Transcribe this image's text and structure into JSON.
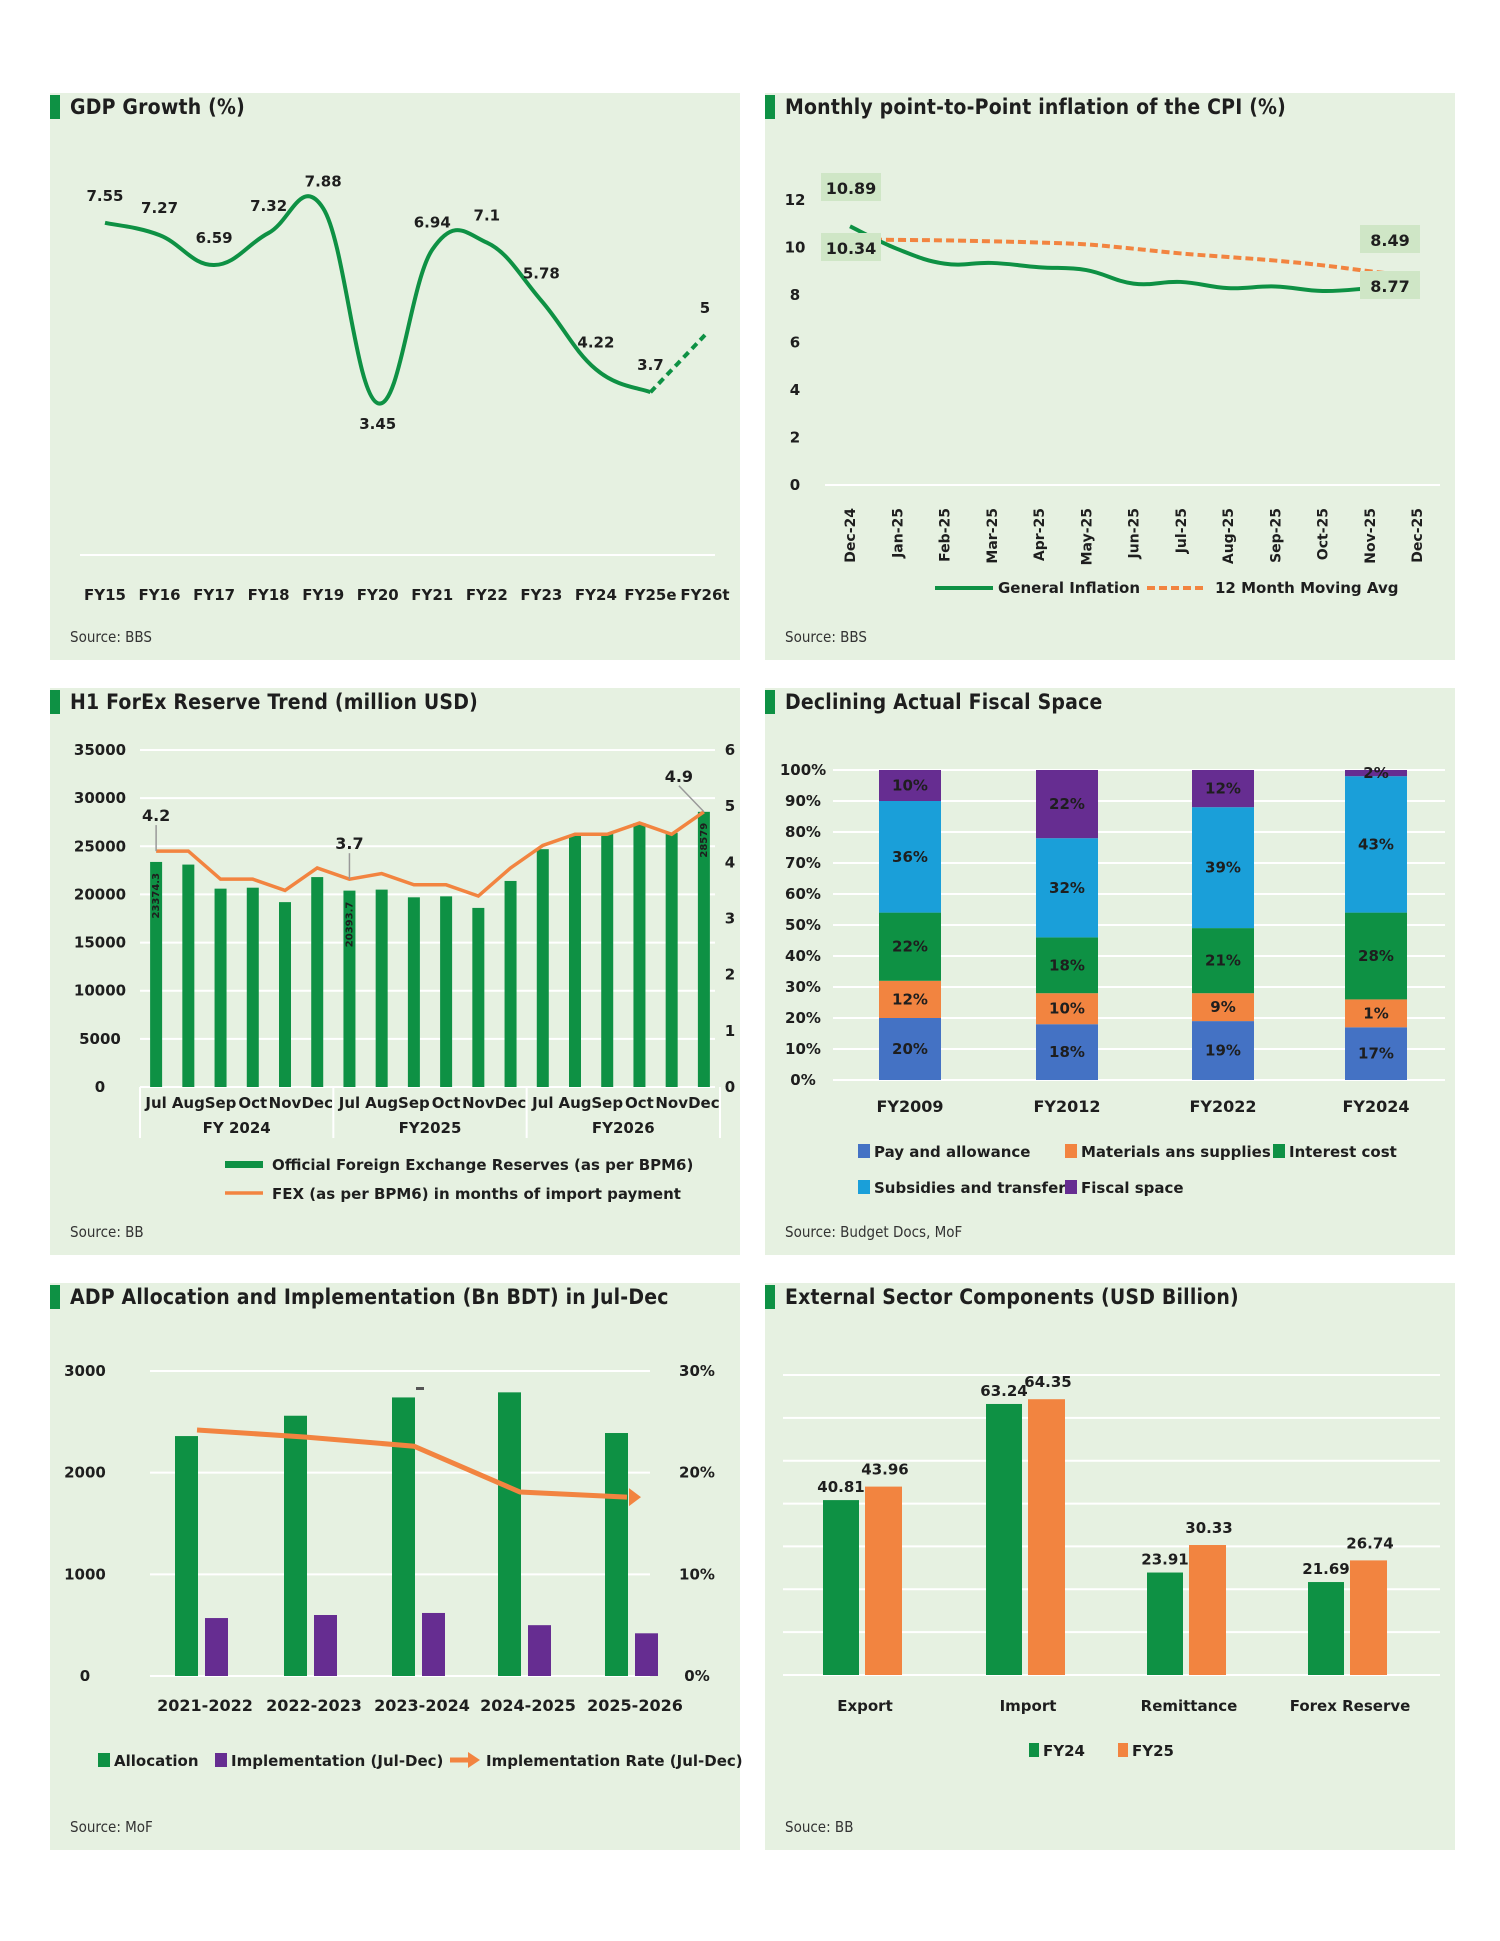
{
  "colors": {
    "panel_bg": "#e6f1e1",
    "green": "#0e9144",
    "orange": "#f28440",
    "purple": "#662d91",
    "blue": "#4472c4",
    "cyan": "#1a9fd9",
    "grid": "#ffffff"
  },
  "panels": [
    {
      "title": "GDP Growth (%)",
      "source": "Source: BBS"
    },
    {
      "title": "Monthly point-to-Point inflation of the CPI (%)",
      "source": "Source: BBS"
    },
    {
      "title": "H1 ForEx Reserve Trend (million USD)",
      "source": "Source: BB"
    },
    {
      "title": "Declining Actual Fiscal Space",
      "source": "Source: Budget Docs, MoF"
    },
    {
      "title": "ADP Allocation and Implementation (Bn BDT) in Jul-Dec",
      "source": "Source: MoF"
    },
    {
      "title": "External Sector Components (USD Billion)",
      "source": "Souce: BB"
    }
  ],
  "chart_data": [
    {
      "type": "line",
      "title": "GDP Growth (%)",
      "categories": [
        "FY15",
        "FY16",
        "FY17",
        "FY18",
        "FY19",
        "FY20",
        "FY21",
        "FY22",
        "FY23",
        "FY24",
        "FY25e",
        "FY26t"
      ],
      "values": [
        7.55,
        7.27,
        6.59,
        7.32,
        7.88,
        3.45,
        6.94,
        7.1,
        5.78,
        4.22,
        3.7,
        5
      ],
      "labels": [
        "7.55",
        "7.27",
        "6.59",
        "7.32",
        "7.88",
        "3.45",
        "6.94",
        "7.1",
        "5.78",
        "4.22",
        "3.7",
        "5"
      ],
      "projected_from_index": 10,
      "ylim": [
        0,
        9
      ],
      "grid": false
    },
    {
      "type": "line",
      "title": "Monthly point-to-Point inflation of the CPI (%)",
      "categories": [
        "Dec-24",
        "Jan-25",
        "Feb-25",
        "Mar-25",
        "Apr-25",
        "May-25",
        "Jun-25",
        "Jul-25",
        "Aug-25",
        "Sep-25",
        "Oct-25",
        "Nov-25",
        "Dec-25"
      ],
      "yticks": [
        "0",
        "2",
        "4",
        "6",
        "8",
        "10",
        "12"
      ],
      "ylim": [
        0,
        12
      ],
      "series": [
        {
          "name": "General Inflation",
          "values": [
            10.89,
            9.94,
            9.32,
            9.35,
            9.17,
            9.05,
            8.48,
            8.55,
            8.29,
            8.36,
            8.17,
            8.29,
            8.49
          ]
        },
        {
          "name": "12 Month Moving Avg",
          "values": [
            10.34,
            10.32,
            10.3,
            10.26,
            10.21,
            10.13,
            9.95,
            9.75,
            9.6,
            9.45,
            9.25,
            9.0,
            8.77
          ]
        }
      ],
      "annotations": [
        {
          "text": "10.89",
          "series": 0,
          "index": 0
        },
        {
          "text": "10.34",
          "series": 1,
          "index": 0
        },
        {
          "text": "8.49",
          "series": 0,
          "index": 12
        },
        {
          "text": "8.77",
          "series": 1,
          "index": 12
        }
      ],
      "legend": [
        "General Inflation",
        "12 Month Moving Avg"
      ],
      "legend_position": "bottom"
    },
    {
      "type": "bar",
      "title": "H1 ForEx Reserve Trend (million USD)",
      "categories": [
        "Jul",
        "Aug",
        "Sep",
        "Oct",
        "Nov",
        "Dec",
        "Jul",
        "Aug",
        "Sep",
        "Oct",
        "Nov",
        "Dec",
        "Jul",
        "Aug",
        "Sep",
        "Oct",
        "Nov",
        "Dec"
      ],
      "groups": [
        {
          "label": "FY 2024",
          "count": 6
        },
        {
          "label": "FY2025",
          "count": 6
        },
        {
          "label": "FY2026",
          "count": 6
        }
      ],
      "yticks_left": [
        "0",
        "5000",
        "10000",
        "15000",
        "20000",
        "25000",
        "30000",
        "35000"
      ],
      "yticks_right": [
        "0",
        "1",
        "2",
        "3",
        "4",
        "5",
        "6"
      ],
      "ylim_left": [
        0,
        35000
      ],
      "ylim_right": [
        0,
        6
      ],
      "series": [
        {
          "name": "Official Foreign Exchange Reserves (as per BPM6)",
          "axis": "left",
          "type": "bar",
          "values": [
            23374.3,
            23100,
            20600,
            20700,
            19200,
            21800,
            20393.7,
            20500,
            19700,
            19800,
            18600,
            21400,
            24700,
            26100,
            26300,
            27400,
            26400,
            28579
          ]
        },
        {
          "name": "FEX (as per BPM6) in months of import payment",
          "axis": "right",
          "type": "line",
          "values": [
            4.2,
            4.2,
            3.7,
            3.7,
            3.5,
            3.9,
            3.7,
            3.8,
            3.6,
            3.6,
            3.4,
            3.9,
            4.3,
            4.5,
            4.5,
            4.7,
            4.5,
            4.9
          ]
        }
      ],
      "bar_labels": [
        {
          "index": 0,
          "text": "23374.3"
        },
        {
          "index": 6,
          "text": "20393.7"
        },
        {
          "index": 17,
          "text": "28579"
        }
      ],
      "line_labels": [
        {
          "index": 0,
          "text": "4.2"
        },
        {
          "index": 6,
          "text": "3.7"
        },
        {
          "index": 17,
          "text": "4.9"
        }
      ],
      "legend_position": "bottom"
    },
    {
      "type": "bar",
      "stacked": true,
      "title": "Declining Actual Fiscal Space",
      "categories": [
        "FY2009",
        "FY2012",
        "FY2022",
        "FY2024"
      ],
      "yticks": [
        "0%",
        "10%",
        "20%",
        "30%",
        "40%",
        "50%",
        "60%",
        "70%",
        "80%",
        "90%",
        "100%"
      ],
      "ylim": [
        0,
        100
      ],
      "series": [
        {
          "name": "Pay and allowance",
          "color": "#4472c4",
          "values": [
            20,
            18,
            19,
            17
          ]
        },
        {
          "name": "Materials ans supplies",
          "color": "#f28440",
          "values": [
            12,
            10,
            9,
            1
          ]
        },
        {
          "name": "Interest cost",
          "color": "#0e9144",
          "values": [
            22,
            18,
            21,
            28
          ]
        },
        {
          "name": "Subsidies and transfers",
          "color": "#1a9fd9",
          "values": [
            36,
            32,
            39,
            43
          ]
        },
        {
          "name": "Fiscal space",
          "color": "#662d91",
          "values": [
            10,
            22,
            12,
            2
          ]
        }
      ],
      "note": "FY2024 Materials segment is drawn ~9% tall but labelled 1%",
      "legend_position": "bottom"
    },
    {
      "type": "bar",
      "title": "ADP Allocation and Implementation (Bn BDT) in Jul-Dec",
      "categories": [
        "2021-2022",
        "2022-2023",
        "2023-2024",
        "2024-2025",
        "2025-2026"
      ],
      "yticks_left": [
        "0",
        "1000",
        "2000",
        "3000"
      ],
      "yticks_right": [
        "0%",
        "10%",
        "20%",
        "30%"
      ],
      "ylim_left": [
        0,
        3000
      ],
      "ylim_right": [
        0,
        30
      ],
      "series": [
        {
          "name": "Allocation",
          "type": "bar",
          "axis": "left",
          "values": [
            2360,
            2560,
            2740,
            2790,
            2390
          ]
        },
        {
          "name": "Implementation (Jul-Dec)",
          "type": "bar",
          "axis": "left",
          "values": [
            570,
            600,
            620,
            500,
            420
          ]
        },
        {
          "name": "Implementation Rate (Jul-Dec)",
          "type": "line",
          "axis": "right",
          "values": [
            24.2,
            23.5,
            22.6,
            18.1,
            17.6
          ]
        }
      ],
      "legend_position": "bottom"
    },
    {
      "type": "bar",
      "title": "External Sector Components (USD Billion)",
      "categories": [
        "Export",
        "Import",
        "Remittance",
        "Forex Reserve"
      ],
      "ylim": [
        0,
        70
      ],
      "series": [
        {
          "name": "FY24",
          "color": "#0e9144",
          "values": [
            40.81,
            63.24,
            23.91,
            21.69
          ],
          "labels": [
            "40.81",
            "63.24",
            "23.91",
            "21.69"
          ]
        },
        {
          "name": "FY25",
          "color": "#f28440",
          "values": [
            43.96,
            64.35,
            30.33,
            26.74
          ],
          "labels": [
            "43.96",
            "64.35",
            "30.33",
            "26.74"
          ]
        }
      ],
      "legend_position": "bottom"
    }
  ]
}
